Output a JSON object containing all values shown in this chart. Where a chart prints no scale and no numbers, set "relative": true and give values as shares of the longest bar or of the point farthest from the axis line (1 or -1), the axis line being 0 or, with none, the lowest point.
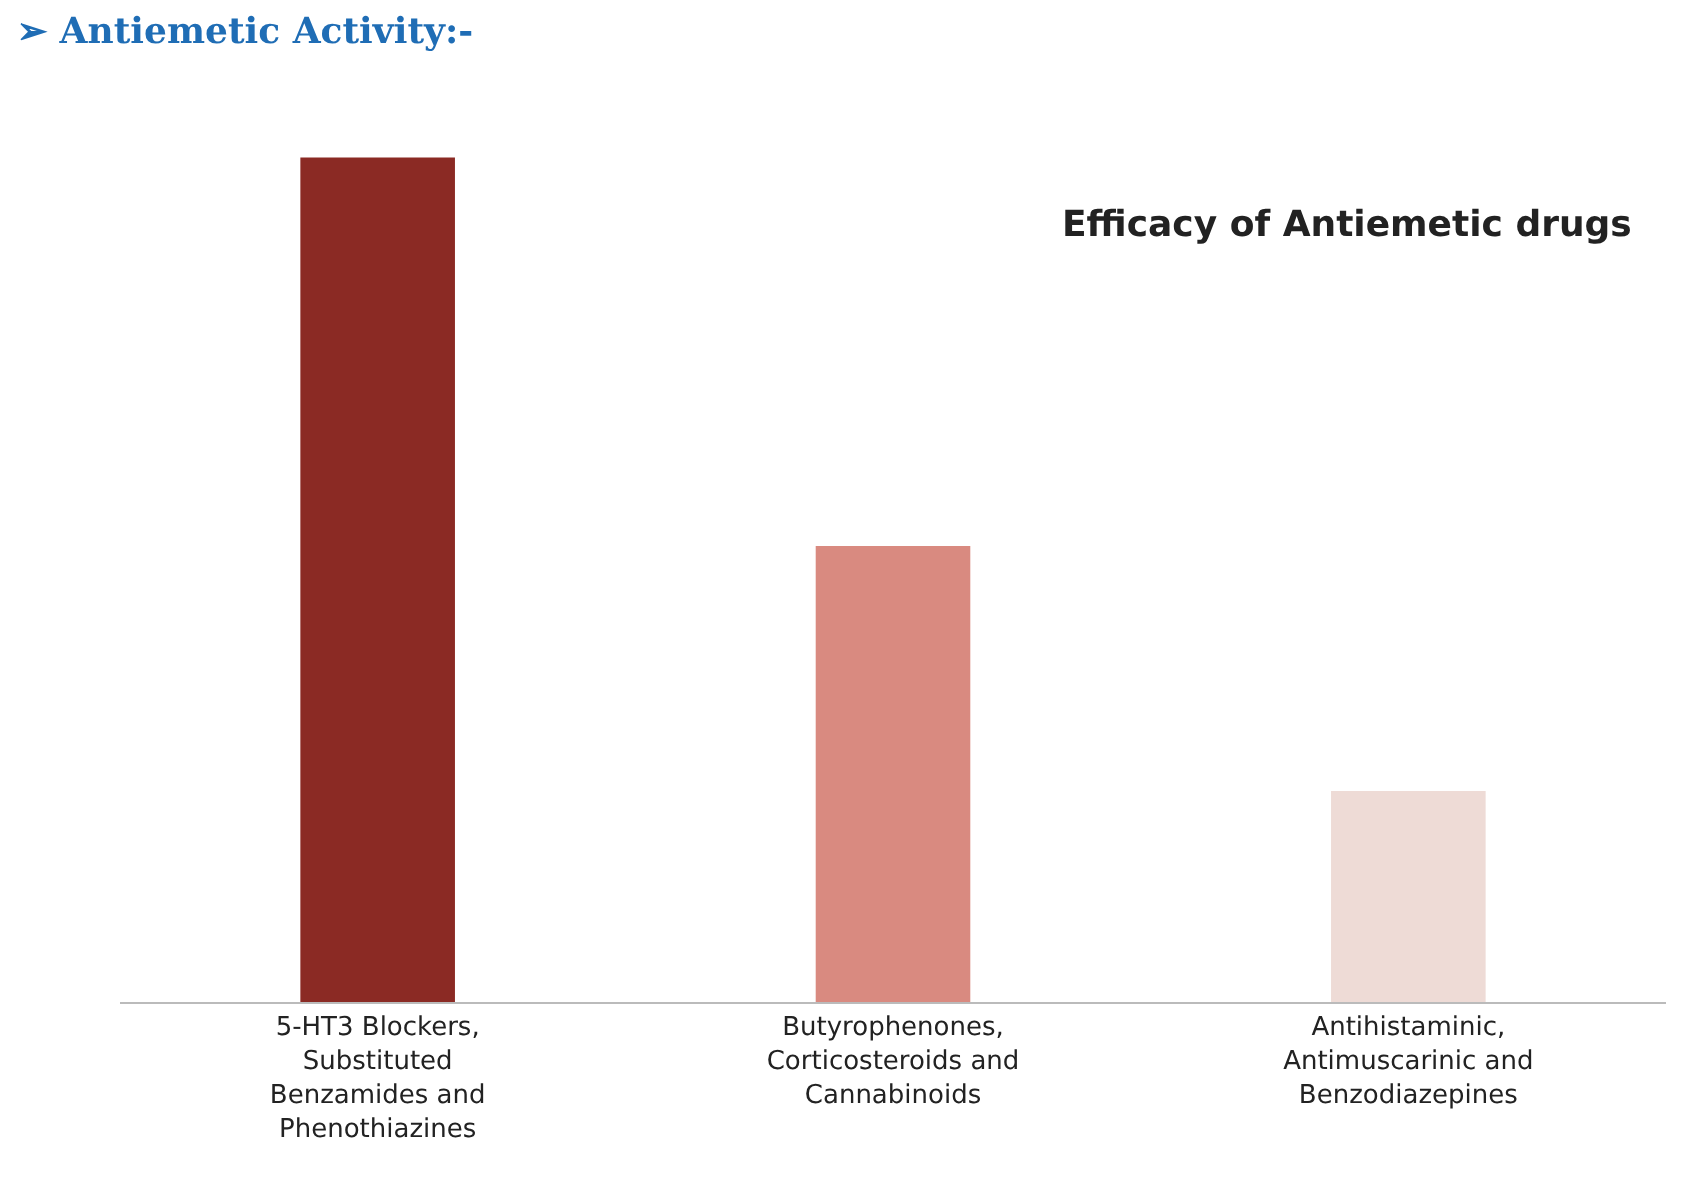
{
  "chart_data": {
    "type": "bar",
    "relative": true,
    "title": "➢ Antiemetic Activity:-",
    "subtitle": "Efficacy of Antiemetic drugs",
    "categories": [
      "5-HT3 Blockers, Substituted Benzamides and Phenothiazines",
      "Butyrophenones, Corticosteroids and Cannabinoids",
      "Antihistaminic, Antimuscarinic and Benzodiazepines"
    ],
    "values": [
      1,
      0.54,
      0.25
    ],
    "colors": [
      "#8b2a24",
      "#d98a80",
      "#eedbd6"
    ]
  }
}
